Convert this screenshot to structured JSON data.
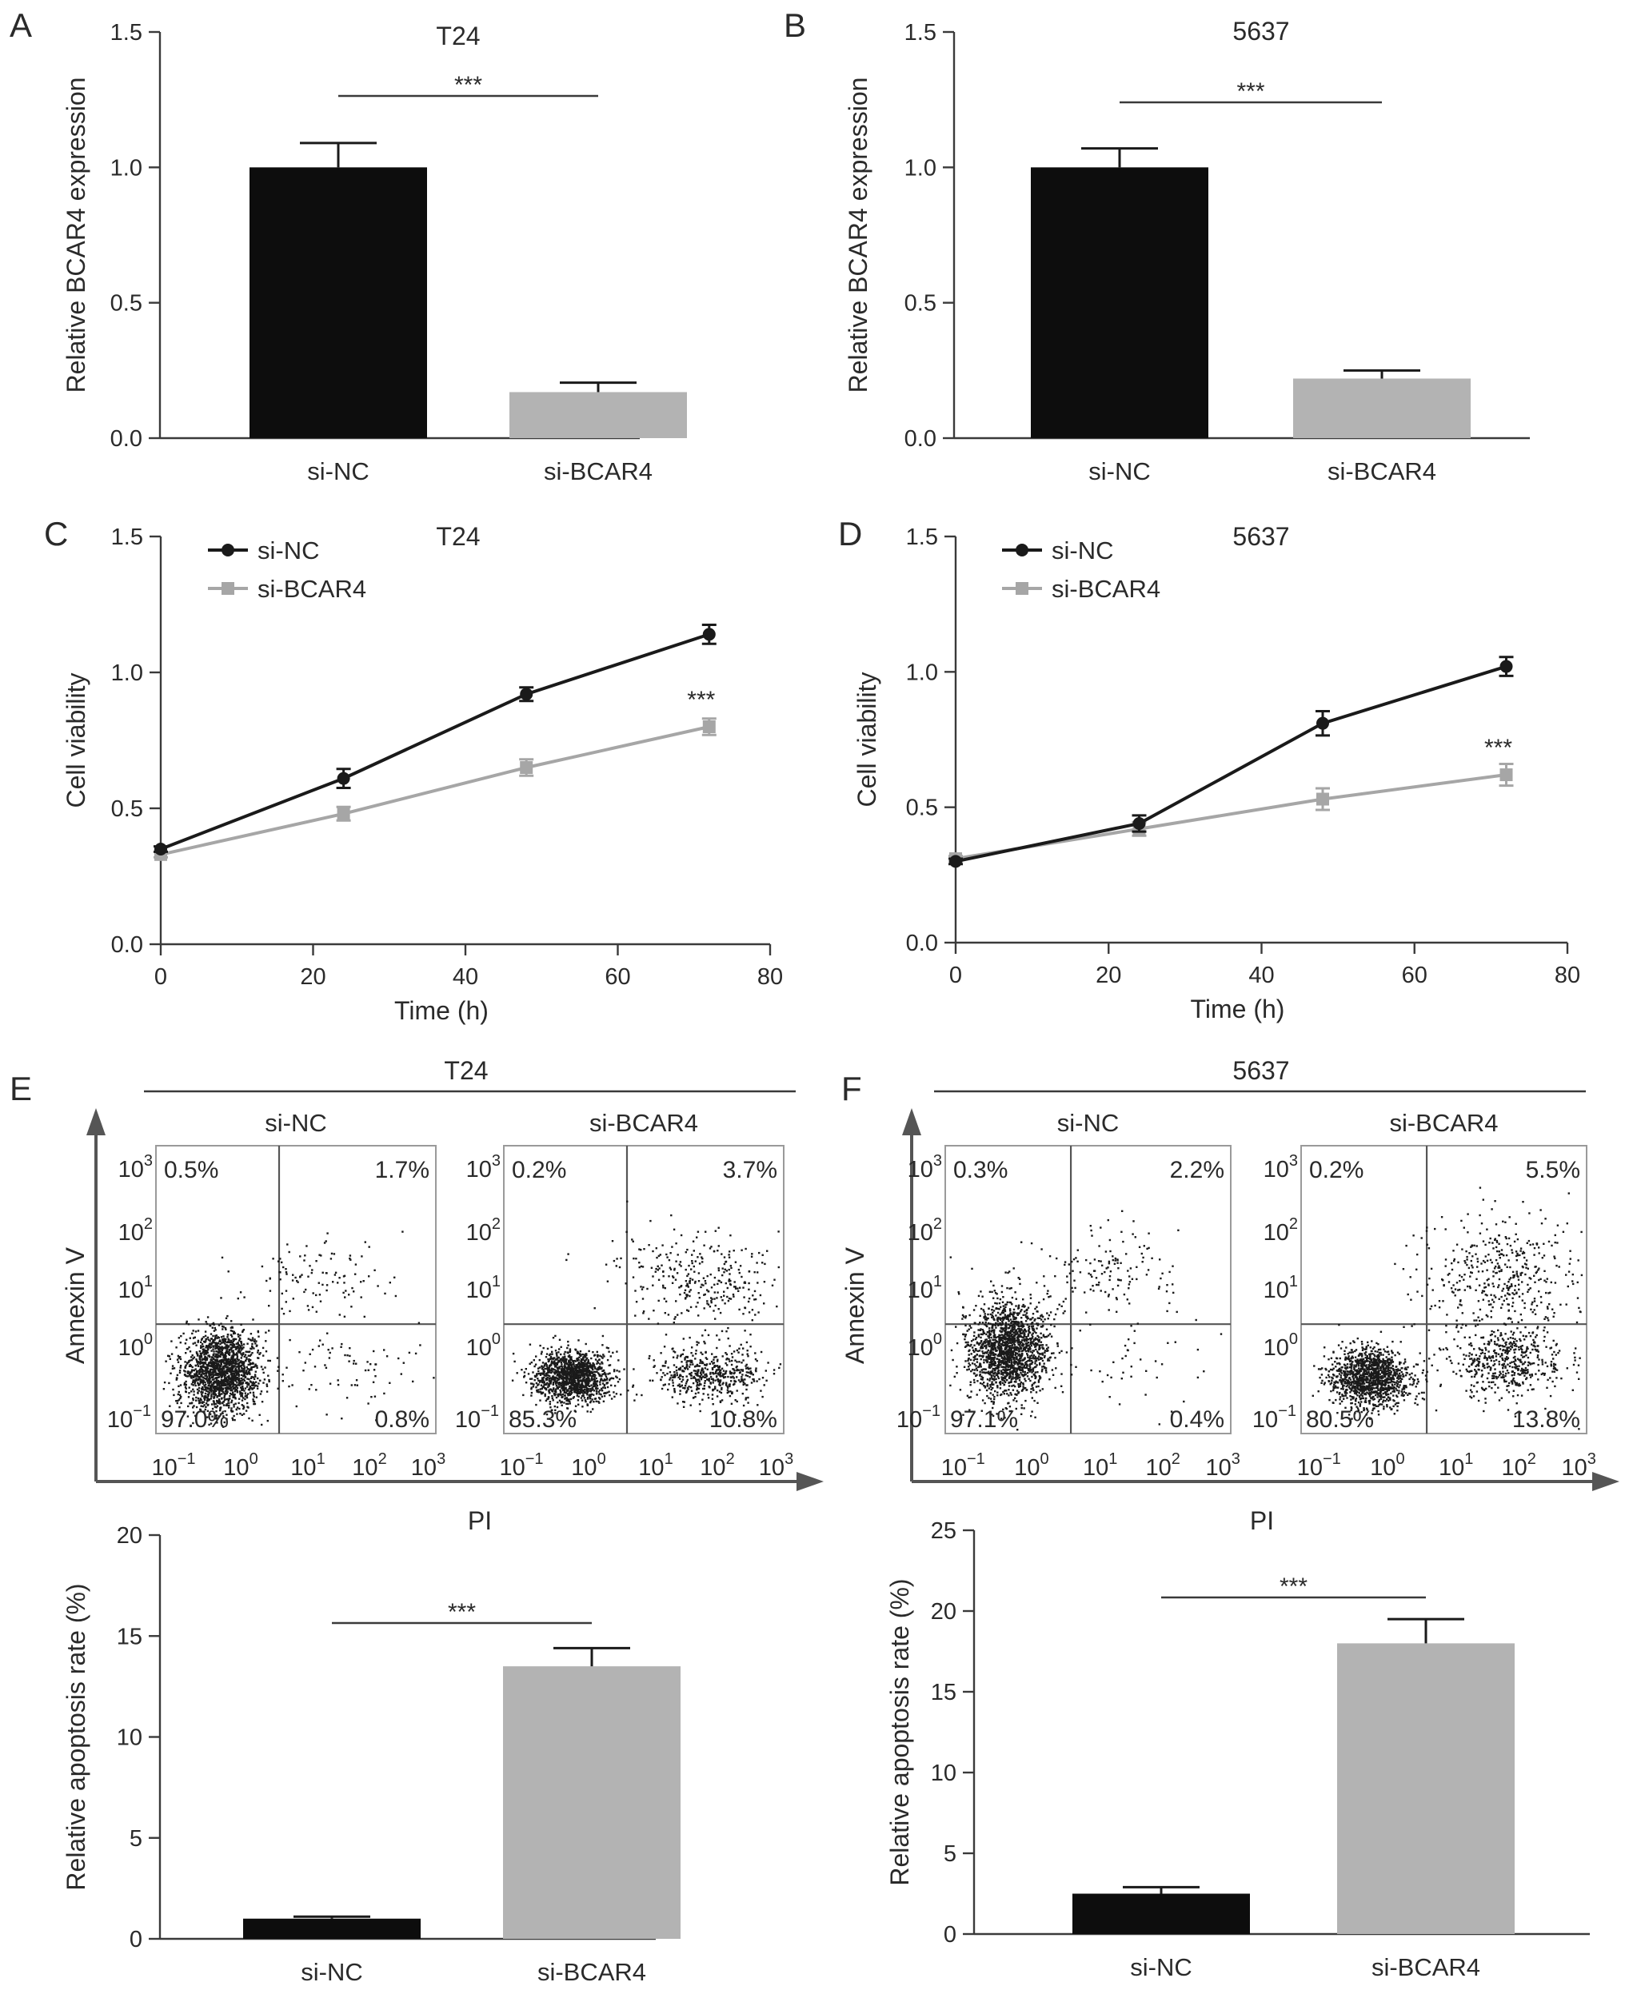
{
  "chart_data": [
    {
      "id": "A",
      "type": "bar",
      "panel_label": "A",
      "title": "T24",
      "ylabel": "Relative BCAR4 expression",
      "xlabel": "",
      "ylim": [
        0,
        1.5
      ],
      "yticks": [
        "0.0",
        "0.5",
        "1.0",
        "1.5"
      ],
      "categories": [
        "si-NC",
        "si-BCAR4"
      ],
      "values": [
        1.0,
        0.17
      ],
      "errors": [
        0.09,
        0.035
      ],
      "bar_colors": [
        "#0d0d0d",
        "#b3b3b3"
      ],
      "significance": "***"
    },
    {
      "id": "B",
      "type": "bar",
      "panel_label": "B",
      "title": "5637",
      "ylabel": "Relative BCAR4 expression",
      "xlabel": "",
      "ylim": [
        0,
        1.5
      ],
      "yticks": [
        "0.0",
        "0.5",
        "1.0",
        "1.5"
      ],
      "categories": [
        "si-NC",
        "si-BCAR4"
      ],
      "values": [
        1.0,
        0.22
      ],
      "errors": [
        0.07,
        0.03
      ],
      "bar_colors": [
        "#0d0d0d",
        "#b3b3b3"
      ],
      "significance": "***"
    },
    {
      "id": "C",
      "type": "line",
      "panel_label": "C",
      "title": "T24",
      "xlabel": "Time (h)",
      "ylabel": "Cell viability",
      "xlim": [
        0,
        80
      ],
      "ylim": [
        0,
        1.5
      ],
      "xticks": [
        "0",
        "20",
        "40",
        "60",
        "80"
      ],
      "yticks": [
        "0.0",
        "0.5",
        "1.0",
        "1.5"
      ],
      "x": [
        0,
        24,
        48,
        72
      ],
      "series": [
        {
          "name": "si-NC",
          "color": "#1a1a1a",
          "marker": "circle",
          "values": [
            0.35,
            0.61,
            0.92,
            1.14
          ],
          "errors": [
            0.01,
            0.035,
            0.025,
            0.035
          ]
        },
        {
          "name": "si-BCAR4",
          "color": "#a6a6a6",
          "marker": "square",
          "values": [
            0.33,
            0.48,
            0.65,
            0.8
          ],
          "errors": [
            0.01,
            0.025,
            0.03,
            0.03
          ]
        }
      ],
      "significance": "***",
      "significance_at": [
        72,
        0.8
      ],
      "legend": "top-left"
    },
    {
      "id": "D",
      "type": "line",
      "panel_label": "D",
      "title": "5637",
      "xlabel": "Time (h)",
      "ylabel": "Cell viability",
      "xlim": [
        0,
        80
      ],
      "ylim": [
        0,
        1.5
      ],
      "xticks": [
        "0",
        "20",
        "40",
        "60",
        "80"
      ],
      "yticks": [
        "0.0",
        "0.5",
        "1.0",
        "1.5"
      ],
      "x": [
        0,
        24,
        48,
        72
      ],
      "series": [
        {
          "name": "si-NC",
          "color": "#1a1a1a",
          "marker": "circle",
          "values": [
            0.3,
            0.44,
            0.81,
            1.02
          ],
          "errors": [
            0.01,
            0.03,
            0.045,
            0.035
          ]
        },
        {
          "name": "si-BCAR4",
          "color": "#a6a6a6",
          "marker": "square",
          "values": [
            0.31,
            0.42,
            0.53,
            0.62
          ],
          "errors": [
            0.01,
            0.025,
            0.04,
            0.04
          ]
        }
      ],
      "significance": "***",
      "significance_at": [
        72,
        0.62
      ],
      "legend": "top-left"
    },
    {
      "id": "E-bar",
      "type": "bar",
      "title": "",
      "ylabel": "Relative apoptosis rate (%)",
      "xlabel": "",
      "ylim": [
        0,
        20
      ],
      "yticks": [
        "0",
        "5",
        "10",
        "15",
        "20"
      ],
      "categories": [
        "si-NC",
        "si-BCAR4"
      ],
      "values": [
        1.0,
        13.5
      ],
      "errors": [
        0.1,
        0.9
      ],
      "bar_colors": [
        "#0d0d0d",
        "#b3b3b3"
      ],
      "significance": "***"
    },
    {
      "id": "F-bar",
      "type": "bar",
      "title": "",
      "ylabel": "Relative apoptosis rate (%)",
      "xlabel": "",
      "ylim": [
        0,
        25
      ],
      "yticks": [
        "0",
        "5",
        "10",
        "15",
        "20",
        "25"
      ],
      "categories": [
        "si-NC",
        "si-BCAR4"
      ],
      "values": [
        2.5,
        18.0
      ],
      "errors": [
        0.4,
        1.5
      ],
      "bar_colors": [
        "#0d0d0d",
        "#b3b3b3"
      ],
      "significance": "***"
    },
    {
      "id": "E-flow",
      "type": "scatter",
      "panel_label": "E",
      "title": "T24",
      "xlabel": "PI",
      "ylabel": "Annexin V",
      "log_ticks": [
        "10",
        "10",
        "10",
        "10",
        "10"
      ],
      "log_exponents": [
        "−1",
        "0",
        "1",
        "2",
        "3"
      ],
      "plots": [
        {
          "condition": "si-NC",
          "quadrants": [
            "0.5%",
            "1.7%",
            "97.0%",
            "0.8%"
          ],
          "clusters": [
            {
              "cx": 0.23,
              "cy": 0.78,
              "sx": 0.07,
              "sy": 0.07,
              "n": 1700
            },
            {
              "cx": 0.58,
              "cy": 0.45,
              "sx": 0.12,
              "sy": 0.07,
              "n": 110
            },
            {
              "cx": 0.7,
              "cy": 0.78,
              "sx": 0.14,
              "sy": 0.08,
              "n": 70
            }
          ]
        },
        {
          "condition": "si-BCAR4",
          "quadrants": [
            "0.2%",
            "3.7%",
            "85.3%",
            "10.8%"
          ],
          "clusters": [
            {
              "cx": 0.24,
              "cy": 0.8,
              "sx": 0.07,
              "sy": 0.045,
              "n": 1300
            },
            {
              "cx": 0.73,
              "cy": 0.79,
              "sx": 0.1,
              "sy": 0.05,
              "n": 500
            },
            {
              "cx": 0.72,
              "cy": 0.46,
              "sx": 0.15,
              "sy": 0.09,
              "n": 320
            }
          ]
        }
      ]
    },
    {
      "id": "F-flow",
      "type": "scatter",
      "panel_label": "F",
      "title": "5637",
      "xlabel": "PI",
      "ylabel": "Annexin V",
      "log_ticks": [
        "10",
        "10",
        "10",
        "10",
        "10"
      ],
      "log_exponents": [
        "−1",
        "0",
        "1",
        "2",
        "3"
      ],
      "plots": [
        {
          "condition": "si-NC",
          "quadrants": [
            "0.3%",
            "2.2%",
            "97.1%",
            "0.4%"
          ],
          "clusters": [
            {
              "cx": 0.22,
              "cy": 0.7,
              "sx": 0.07,
              "sy": 0.085,
              "n": 1700
            },
            {
              "cx": 0.55,
              "cy": 0.42,
              "sx": 0.12,
              "sy": 0.08,
              "n": 140
            },
            {
              "cx": 0.68,
              "cy": 0.75,
              "sx": 0.12,
              "sy": 0.08,
              "n": 40
            }
          ]
        },
        {
          "condition": "si-BCAR4",
          "quadrants": [
            "0.2%",
            "5.5%",
            "80.5%",
            "13.8%"
          ],
          "clusters": [
            {
              "cx": 0.24,
              "cy": 0.8,
              "sx": 0.07,
              "sy": 0.05,
              "n": 1250
            },
            {
              "cx": 0.72,
              "cy": 0.75,
              "sx": 0.11,
              "sy": 0.06,
              "n": 520
            },
            {
              "cx": 0.7,
              "cy": 0.45,
              "sx": 0.15,
              "sy": 0.1,
              "n": 420
            }
          ]
        }
      ]
    }
  ]
}
